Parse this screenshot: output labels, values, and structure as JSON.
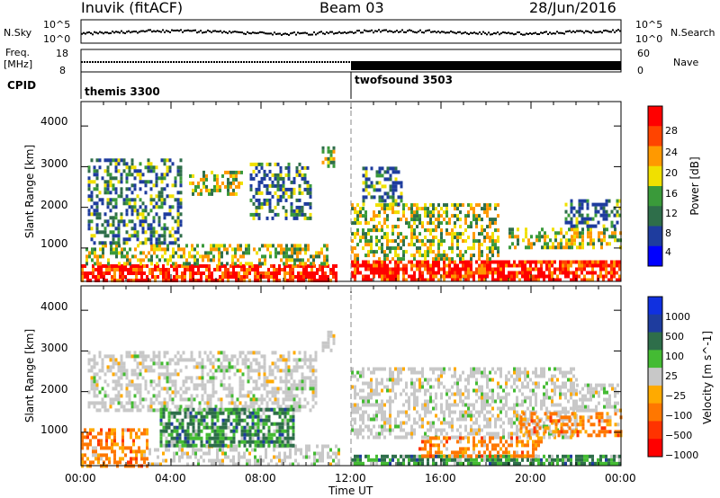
{
  "header": {
    "station": "Inuvik (fitACF)",
    "beam": "Beam 03",
    "date": "28/Jun/2016"
  },
  "top_panels": {
    "nsky_label": "N.Sky",
    "nsky_ticks": [
      "10^5",
      "10^0"
    ],
    "nsearch_label": "N.Search",
    "nsearch_ticks": [
      "10^5",
      "10^0"
    ],
    "freq_label": "Freq.",
    "freq_unit": "[MHz]",
    "freq_ticks": [
      "18",
      "8"
    ],
    "nave_label": "Nave",
    "nave_ticks": [
      "60",
      "0"
    ],
    "cpid_label": "CPID",
    "cpid_segments": [
      {
        "name": "themis 3300",
        "start_hour": 0
      },
      {
        "name": "twofsound 3503",
        "start_hour": 12
      }
    ]
  },
  "colors": {
    "power_scale": [
      "#0000ff",
      "#1e3c9e",
      "#2e6e4a",
      "#3a9a3a",
      "#f0e000",
      "#ff9900",
      "#ff4400",
      "#ff0000"
    ],
    "velocity_scale": [
      "#ff0000",
      "#ff3300",
      "#ff7700",
      "#ffaa00",
      "#c8c8c8",
      "#44bb33",
      "#2e6e4a",
      "#1e3c9e",
      "#1030e0"
    ],
    "frame": "#000000"
  },
  "chart_data": [
    {
      "type": "heatmap",
      "title": "Power",
      "xlabel": "Time UT",
      "ylabel": "Slant Range [km]",
      "xticks": [
        "00:00",
        "04:00",
        "08:00",
        "12:00",
        "16:00",
        "20:00",
        "00:00"
      ],
      "xlim_hours": [
        0,
        24
      ],
      "yticks": [
        "1000",
        "2000",
        "3000",
        "4000"
      ],
      "ylim": [
        180,
        4600
      ],
      "colorbar": {
        "label": "Power [dB]",
        "ticks": [
          "4",
          "8",
          "12",
          "16",
          "20",
          "24",
          "28"
        ],
        "range": [
          0,
          30
        ]
      },
      "echo_regions": [
        {
          "t0": 0.0,
          "t1": 11.3,
          "r0": 200,
          "r1": 600,
          "level": "high"
        },
        {
          "t0": 0.2,
          "t1": 11.0,
          "r0": 600,
          "r1": 1100,
          "level": "mid"
        },
        {
          "t0": 0.3,
          "t1": 4.5,
          "r0": 1100,
          "r1": 3200,
          "level": "low"
        },
        {
          "t0": 4.8,
          "t1": 7.2,
          "r0": 2300,
          "r1": 2900,
          "level": "mid"
        },
        {
          "t0": 7.5,
          "t1": 10.2,
          "r0": 1700,
          "r1": 3100,
          "level": "low"
        },
        {
          "t0": 10.7,
          "t1": 11.3,
          "r0": 3000,
          "r1": 3500,
          "level": "mid"
        },
        {
          "t0": 12.0,
          "t1": 24.0,
          "r0": 200,
          "r1": 700,
          "level": "high"
        },
        {
          "t0": 12.0,
          "t1": 18.5,
          "r0": 700,
          "r1": 2100,
          "level": "mid"
        },
        {
          "t0": 12.5,
          "t1": 14.2,
          "r0": 2100,
          "r1": 3000,
          "level": "low"
        },
        {
          "t0": 19.0,
          "t1": 24.0,
          "r0": 1000,
          "r1": 1500,
          "level": "mid"
        },
        {
          "t0": 21.5,
          "t1": 24.0,
          "r0": 1500,
          "r1": 2200,
          "level": "low"
        }
      ]
    },
    {
      "type": "heatmap",
      "title": "Velocity",
      "xlabel": "Time UT",
      "ylabel": "Slant Range [km]",
      "xticks": [
        "00:00",
        "04:00",
        "08:00",
        "12:00",
        "16:00",
        "20:00",
        "00:00"
      ],
      "xlim_hours": [
        0,
        24
      ],
      "yticks": [
        "1000",
        "2000",
        "3000",
        "4000"
      ],
      "ylim": [
        180,
        4600
      ],
      "colorbar": {
        "label": "Velocity [m s^-1]",
        "ticks": [
          "1000",
          "500",
          "100",
          "25",
          "−25",
          "−100",
          "−500",
          "−1000"
        ]
      },
      "echo_regions": [
        {
          "t0": 0.0,
          "t1": 3.0,
          "r0": 200,
          "r1": 1100,
          "level": "neg"
        },
        {
          "t0": 3.0,
          "t1": 11.5,
          "r0": 200,
          "r1": 700,
          "level": "gs"
        },
        {
          "t0": 0.3,
          "t1": 10.5,
          "r0": 1500,
          "r1": 3000,
          "level": "gs"
        },
        {
          "t0": 3.5,
          "t1": 9.5,
          "r0": 700,
          "r1": 1600,
          "level": "pos"
        },
        {
          "t0": 10.7,
          "t1": 11.3,
          "r0": 3000,
          "r1": 3500,
          "level": "gs"
        },
        {
          "t0": 12.0,
          "t1": 24.0,
          "r0": 200,
          "r1": 450,
          "level": "pos"
        },
        {
          "t0": 12.0,
          "t1": 22.0,
          "r0": 900,
          "r1": 2600,
          "level": "gs"
        },
        {
          "t0": 15.0,
          "t1": 20.5,
          "r0": 450,
          "r1": 900,
          "level": "neg"
        },
        {
          "t0": 19.5,
          "t1": 24.0,
          "r0": 900,
          "r1": 1500,
          "level": "neg"
        },
        {
          "t0": 22.0,
          "t1": 24.0,
          "r0": 1500,
          "r1": 2200,
          "level": "gs"
        }
      ]
    }
  ]
}
